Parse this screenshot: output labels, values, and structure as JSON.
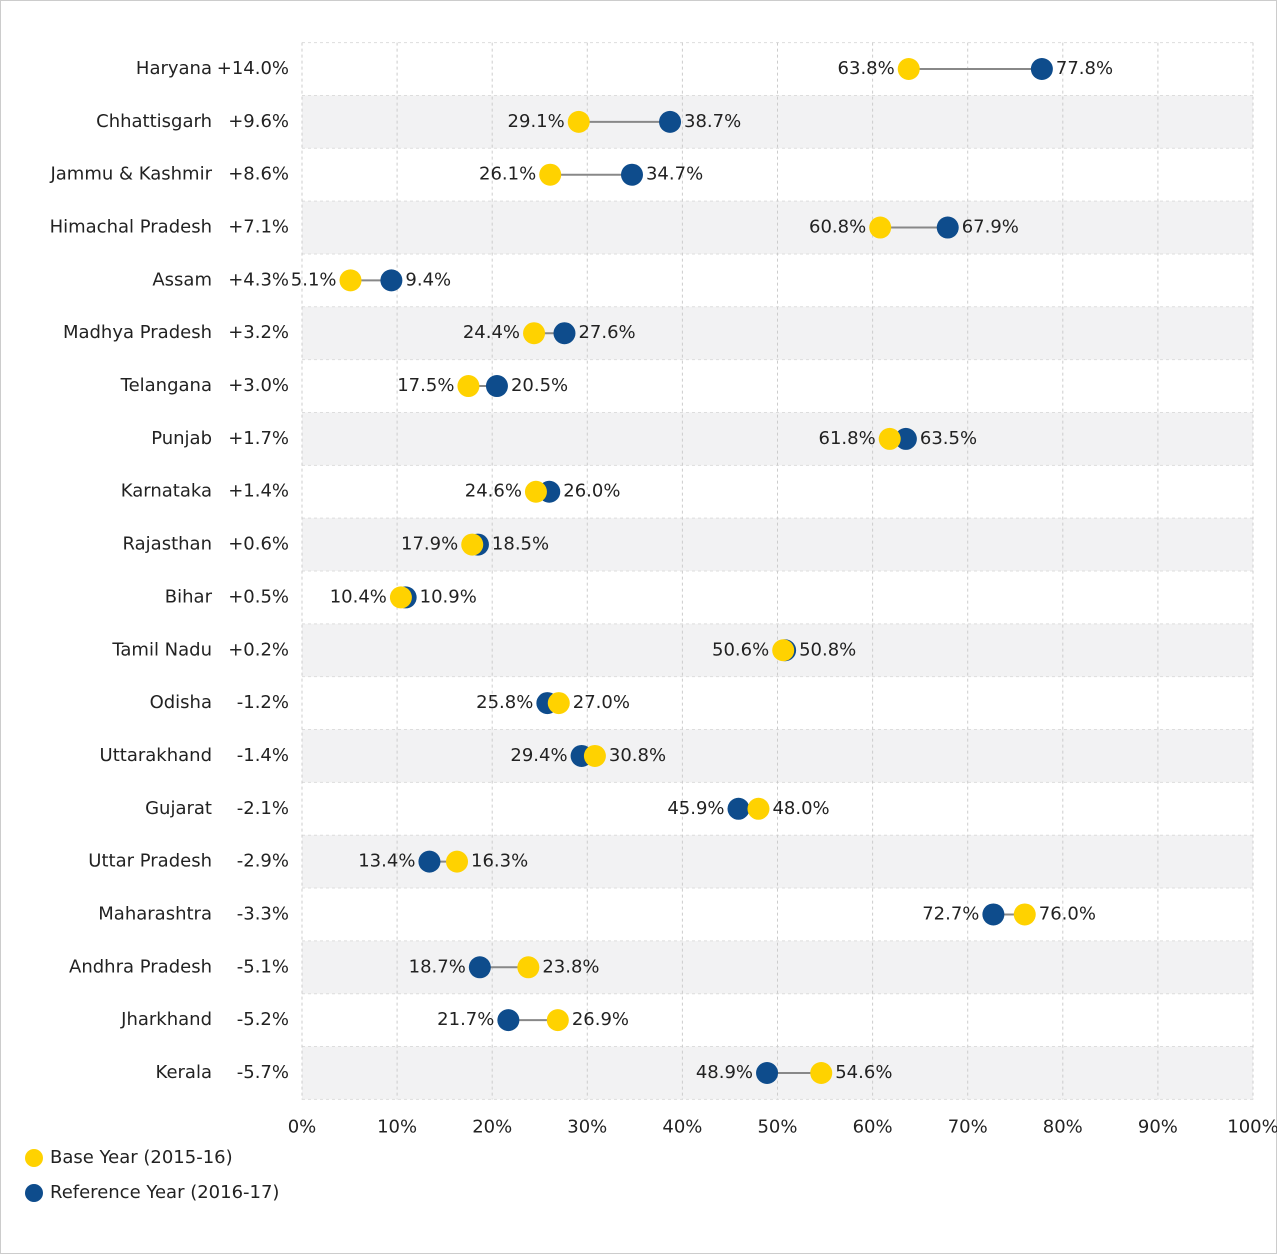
{
  "chart_data": {
    "type": "dumbbell",
    "categories": [
      "Haryana",
      "Chhattisgarh",
      "Jammu & Kashmir",
      "Himachal Pradesh",
      "Assam",
      "Madhya Pradesh",
      "Telangana",
      "Punjab",
      "Karnataka",
      "Rajasthan",
      "Bihar",
      "Tamil Nadu",
      "Odisha",
      "Uttarakhand",
      "Gujarat",
      "Uttar Pradesh",
      "Maharashtra",
      "Andhra Pradesh",
      "Jharkhand",
      "Kerala"
    ],
    "series": [
      {
        "name": "Base Year (2015-16)",
        "color": "#ffd200",
        "values": [
          63.8,
          29.1,
          26.1,
          60.8,
          5.1,
          24.4,
          17.5,
          61.8,
          24.6,
          17.9,
          10.4,
          50.6,
          27.0,
          30.8,
          48.0,
          16.3,
          76.0,
          23.8,
          26.9,
          54.6
        ],
        "value_labels": [
          "63.8%",
          "29.1%",
          "26.1%",
          "60.8%",
          "5.1%",
          "24.4%",
          "17.5%",
          "61.8%",
          "24.6%",
          "17.9%",
          "10.4%",
          "50.6%",
          "27.0%",
          "30.8%",
          "48.0%",
          "16.3%",
          "76.0%",
          "23.8%",
          "26.9%",
          "54.6%"
        ]
      },
      {
        "name": "Reference Year (2016-17)",
        "color": "#0e4c8c",
        "values": [
          77.8,
          38.7,
          34.7,
          67.9,
          9.4,
          27.6,
          20.5,
          63.5,
          26.0,
          18.5,
          10.9,
          50.8,
          25.8,
          29.4,
          45.9,
          13.4,
          72.7,
          18.7,
          21.7,
          48.9
        ],
        "value_labels": [
          "77.8%",
          "38.7%",
          "34.7%",
          "67.9%",
          "9.4%",
          "27.6%",
          "20.5%",
          "63.5%",
          "26.0%",
          "18.5%",
          "10.9%",
          "50.8%",
          "25.8%",
          "29.4%",
          "45.9%",
          "13.4%",
          "72.7%",
          "18.7%",
          "21.7%",
          "48.9%"
        ]
      }
    ],
    "change": {
      "values": [
        14.0,
        9.6,
        8.6,
        7.1,
        4.3,
        3.2,
        3.0,
        1.7,
        1.4,
        0.6,
        0.5,
        0.2,
        -1.2,
        -1.4,
        -2.1,
        -2.9,
        -3.3,
        -5.1,
        -5.2,
        -5.7
      ],
      "value_labels": [
        "+14.0%",
        "+9.6%",
        "+8.6%",
        "+7.1%",
        "+4.3%",
        "+3.2%",
        "+3.0%",
        "+1.7%",
        "+1.4%",
        "+0.6%",
        "+0.5%",
        "+0.2%",
        "-1.2%",
        "-1.4%",
        "-2.1%",
        "-2.9%",
        "-3.3%",
        "-5.1%",
        "-5.2%",
        "-5.7%"
      ]
    },
    "xlim": [
      0,
      100
    ],
    "xticks": [
      {
        "value": 0,
        "label": "0%"
      },
      {
        "value": 10,
        "label": "10%"
      },
      {
        "value": 20,
        "label": "20%"
      },
      {
        "value": 30,
        "label": "30%"
      },
      {
        "value": 40,
        "label": "40%"
      },
      {
        "value": 50,
        "label": "50%"
      },
      {
        "value": 60,
        "label": "60%"
      },
      {
        "value": 70,
        "label": "70%"
      },
      {
        "value": 80,
        "label": "80%"
      },
      {
        "value": 90,
        "label": "90%"
      },
      {
        "value": 100,
        "label": "100%"
      }
    ],
    "grid": true,
    "legend": "bottom-left"
  }
}
